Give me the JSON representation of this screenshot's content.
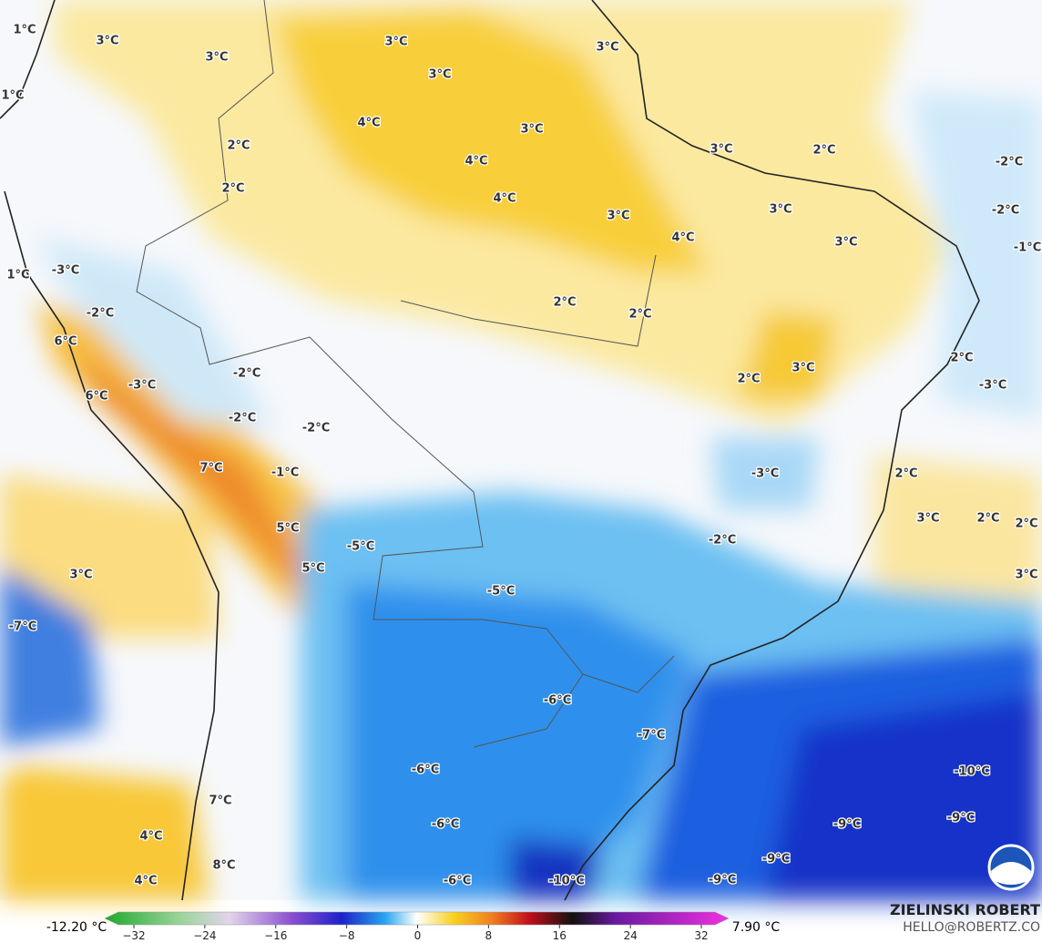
{
  "map": {
    "labels": [
      "1°C",
      "3°C",
      "3°C",
      "3°C",
      "3°C",
      "3°C",
      "1°C",
      "4°C",
      "3°C",
      "2°C",
      "3°C",
      "2°C",
      "-2°C",
      "4°C",
      "2°C",
      "4°C",
      "3°C",
      "-2°C",
      "3°C",
      "4°C",
      "3°C",
      "-1°C",
      "1°C",
      "-3°C",
      "2°C",
      "2°C",
      "-2°C",
      "6°C",
      "2°C",
      "3°C",
      "2°C",
      "-2°C",
      "-3°C",
      "-3°C",
      "6°C",
      "-2°C",
      "-2°C",
      "7°C",
      "-1°C",
      "-3°C",
      "2°C",
      "3°C",
      "2°C",
      "2°C",
      "5°C",
      "-2°C",
      "-5°C",
      "3°C",
      "5°C",
      "3°C",
      "-5°C",
      "-7°C",
      "-6°C",
      "-7°C",
      "-6°C",
      "-10°C",
      "-6°C",
      "-9°C",
      "-9°C",
      "7°C",
      "4°C",
      "-9°C",
      "8°C",
      "4°C",
      "-6°C",
      "-10°C",
      "-9°C"
    ]
  },
  "colorbar": {
    "min_label": "-12.20 °C",
    "max_label": "7.90 °C",
    "ticks": [
      {
        "value": -32,
        "label": "−32"
      },
      {
        "value": -24,
        "label": "−24"
      },
      {
        "value": -16,
        "label": "−16"
      },
      {
        "value": -8,
        "label": "−8"
      },
      0,
      8,
      16,
      24,
      32
    ]
  },
  "credit": {
    "name": "ZIELINSKI ROBERT",
    "contact": "HELLO@ROBERTZ.CO"
  }
}
